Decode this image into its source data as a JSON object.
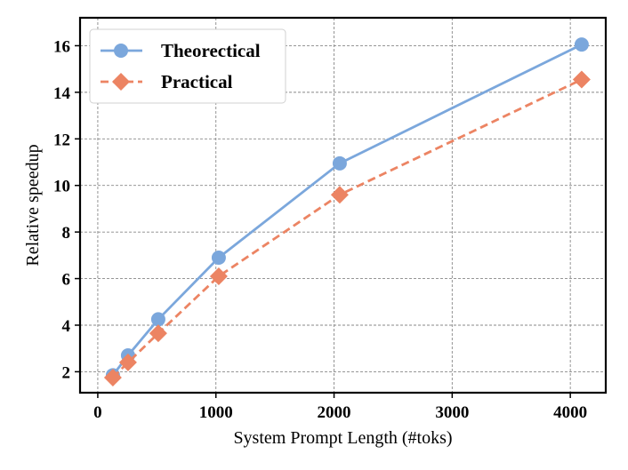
{
  "chart_data": {
    "type": "line",
    "title": "",
    "xlabel": "System Prompt Length (#toks)",
    "ylabel": "Relative speedup",
    "xlim": [
      -150,
      4300
    ],
    "ylim": [
      1.1,
      17.2
    ],
    "x_ticks": [
      0,
      1000,
      2000,
      3000,
      4000
    ],
    "y_ticks": [
      2,
      4,
      6,
      8,
      10,
      12,
      14,
      16
    ],
    "grid": true,
    "legend_position": "top-left",
    "series": [
      {
        "name": "Theorectical",
        "color": "#7ba7dc",
        "marker": "circle",
        "line_style": "solid",
        "x": [
          128,
          256,
          512,
          1024,
          2048,
          4096
        ],
        "y": [
          1.85,
          2.7,
          4.25,
          6.9,
          10.95,
          16.05
        ]
      },
      {
        "name": "Practical",
        "color": "#ec8463",
        "marker": "diamond",
        "line_style": "dashed",
        "x": [
          128,
          256,
          512,
          1024,
          2048,
          4096
        ],
        "y": [
          1.75,
          2.4,
          3.65,
          6.1,
          9.6,
          14.55
        ]
      }
    ]
  }
}
